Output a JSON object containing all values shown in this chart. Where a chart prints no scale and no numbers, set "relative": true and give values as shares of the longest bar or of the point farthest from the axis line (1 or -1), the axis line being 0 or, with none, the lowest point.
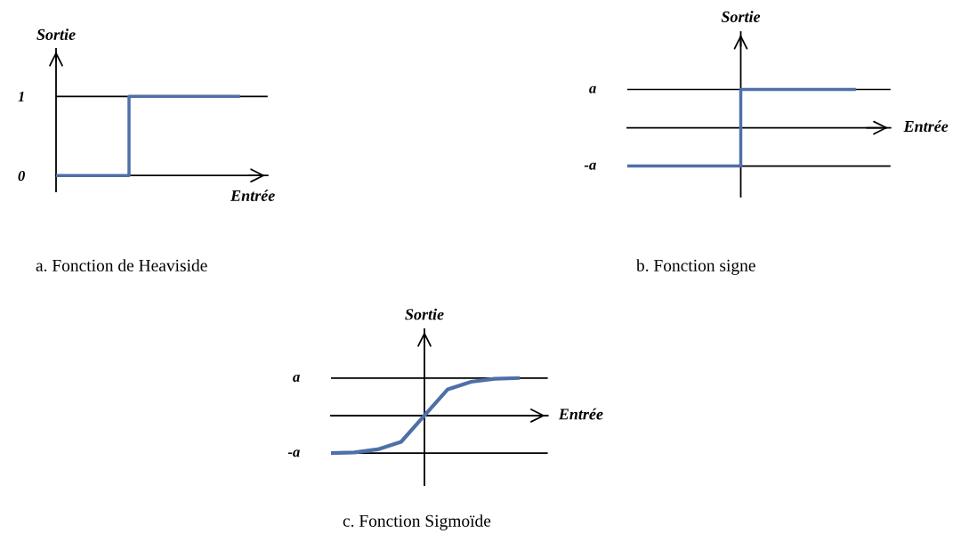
{
  "chart_data": [
    {
      "type": "step",
      "title": "a. Fonction de Heaviside",
      "xlabel": "Entrée",
      "ylabel": "Sortie",
      "categories": [
        null,
        null,
        null,
        null,
        null,
        null
      ],
      "values": [
        0,
        0,
        1,
        1,
        1,
        1
      ],
      "color": "#4f6fa8",
      "ylim": [
        -0.2,
        1.6
      ],
      "yticks": [
        0,
        1
      ],
      "tick_labels": "y",
      "ref_lines": [
        {
          "axis": "y",
          "value": 1,
          "color": "#000000"
        }
      ],
      "grid": false,
      "legend": false
    },
    {
      "type": "step",
      "title": "b. Fonction signe",
      "xlabel": "Entrée",
      "ylabel": "Sortie",
      "categories": [
        null,
        null,
        null,
        null,
        null
      ],
      "values": [
        -1,
        -1,
        1,
        1,
        1
      ],
      "color": "#4f6fa8",
      "relative": true,
      "ref_lines": [
        {
          "axis": "y",
          "value": 1,
          "label": "a",
          "color": "#000000"
        },
        {
          "axis": "y",
          "value": -1,
          "label": "-a",
          "color": "#000000"
        }
      ],
      "grid": false,
      "legend": false
    },
    {
      "type": "line",
      "title": "c. Fonction Sigmoïde",
      "xlabel": "Entrée",
      "ylabel": "Sortie",
      "categories": [
        null,
        null,
        null,
        null,
        null,
        null,
        null,
        null,
        null
      ],
      "values": [
        -1,
        -0.98,
        -0.9,
        -0.7,
        0,
        0.7,
        0.9,
        0.98,
        1
      ],
      "color": "#4f6fa8",
      "relative": true,
      "ref_lines": [
        {
          "axis": "y",
          "value": 1,
          "label": "a",
          "color": "#000000"
        },
        {
          "axis": "y",
          "value": -1,
          "label": "-a",
          "color": "#000000"
        }
      ],
      "grid": false,
      "legend": false
    }
  ]
}
